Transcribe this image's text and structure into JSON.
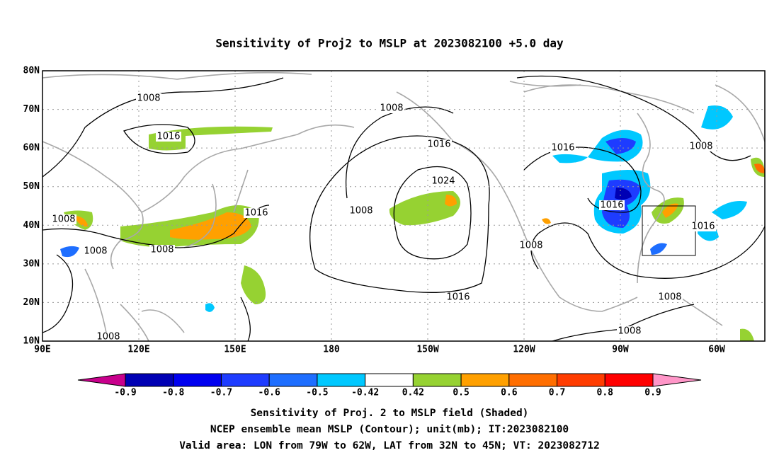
{
  "title": "Sensitivity of Proj2 to MSLP at 2023082100 +5.0 day",
  "map": {
    "lat_labels": [
      "80N",
      "70N",
      "60N",
      "50N",
      "40N",
      "30N",
      "20N",
      "10N"
    ],
    "lon_labels": [
      "90E",
      "120E",
      "150E",
      "180",
      "150W",
      "120W",
      "90W",
      "60W"
    ],
    "contour_labels": [
      "1008",
      "1016",
      "1008",
      "1016",
      "1024",
      "1008",
      "1016",
      "1008",
      "1008",
      "1008",
      "1008",
      "1016",
      "1008",
      "1016",
      "1016",
      "1016",
      "1008",
      "1008",
      "1008"
    ]
  },
  "colorbar": {
    "levels": [
      -0.9,
      -0.8,
      -0.7,
      -0.6,
      -0.5,
      -0.42,
      0.42,
      0.5,
      0.6,
      0.7,
      0.8,
      0.9
    ],
    "colors": [
      "#0000b4",
      "#0000f0",
      "#1e3cff",
      "#1e6eff",
      "#00c8ff",
      "#ffffff",
      "#96d232",
      "#ffa000",
      "#ff6e00",
      "#ff3c00",
      "#ff0000"
    ],
    "extend_colors": [
      "#c8008c",
      "#ff96c8"
    ]
  },
  "caption": [
    "Sensitivity of Proj. 2 to MSLP field (Shaded)",
    "NCEP ensemble mean MSLP (Contour); unit(mb); IT:2023082100",
    "Valid area: LON from 79W to 62W, LAT from 32N to 45N; VT: 2023082712"
  ]
}
